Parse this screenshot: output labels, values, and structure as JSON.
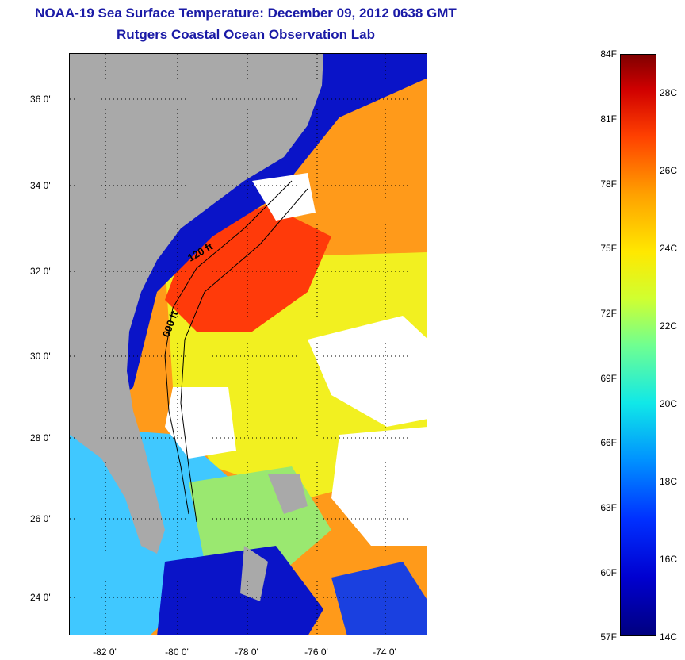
{
  "title": {
    "line1": "NOAA-19 Sea Surface Temperature:  December 09, 2012 0638 GMT",
    "line2": "Rutgers Coastal Ocean Observation Lab"
  },
  "map": {
    "lat_labels": [
      "36 0'",
      "34 0'",
      "32 0'",
      "30 0'",
      "28 0'",
      "26 0'",
      "24 0'"
    ],
    "lon_labels": [
      "-82 0'",
      "-80 0'",
      "-78 0'",
      "-76 0'",
      "-74 0'"
    ],
    "contour_labels": [
      "120 ft",
      "600 ft"
    ],
    "colors": {
      "land": "#a9a9a9",
      "cloud": "#ffffff",
      "cold": "#0a14c8",
      "warm": "#ff9a1a",
      "hot": "#ff3a0a",
      "mild": "#f2f020",
      "cool": "#40c8ff"
    }
  },
  "colorbar": {
    "fahrenheit_labels": [
      "84F",
      "81F",
      "78F",
      "75F",
      "72F",
      "69F",
      "66F",
      "63F",
      "60F",
      "57F"
    ],
    "celsius_labels": [
      "28C",
      "26C",
      "24C",
      "22C",
      "20C",
      "18C",
      "16C",
      "14C"
    ],
    "range_f": [
      57,
      84
    ],
    "range_c": [
      14,
      29
    ]
  }
}
